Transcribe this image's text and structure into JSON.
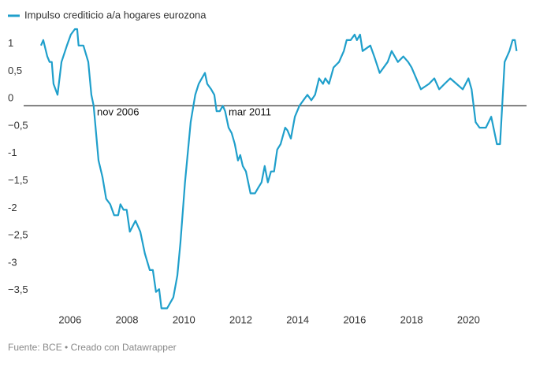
{
  "chart_data": {
    "type": "line",
    "series": [
      {
        "name": "Impulso crediticio a/a hogares eurozona",
        "color": "#1f9fcb",
        "x": [
          2004.98,
          2005.06,
          2005.2,
          2005.28,
          2005.36,
          2005.42,
          2005.56,
          2005.7,
          2005.89,
          2006.03,
          2006.17,
          2006.25,
          2006.3,
          2006.47,
          2006.64,
          2006.75,
          2006.83,
          2007.0,
          2007.14,
          2007.27,
          2007.41,
          2007.55,
          2007.69,
          2007.77,
          2007.88,
          2007.99,
          2008.1,
          2008.3,
          2008.47,
          2008.63,
          2008.8,
          2008.91,
          2009.02,
          2009.13,
          2009.21,
          2009.41,
          2009.63,
          2009.77,
          2009.88,
          2010.04,
          2010.24,
          2010.4,
          2010.52,
          2010.63,
          2010.74,
          2010.82,
          2010.96,
          2011.07,
          2011.15,
          2011.26,
          2011.37,
          2011.45,
          2011.57,
          2011.68,
          2011.79,
          2011.9,
          2011.98,
          2012.07,
          2012.18,
          2012.34,
          2012.5,
          2012.61,
          2012.73,
          2012.84,
          2012.95,
          2013.06,
          2013.17,
          2013.28,
          2013.4,
          2013.56,
          2013.64,
          2013.76,
          2013.9,
          2014.06,
          2014.2,
          2014.34,
          2014.48,
          2014.61,
          2014.75,
          2014.89,
          2014.97,
          2015.1,
          2015.26,
          2015.45,
          2015.62,
          2015.72,
          2015.86,
          2016.0,
          2016.08,
          2016.19,
          2016.28,
          2016.55,
          2016.69,
          2016.88,
          2017.16,
          2017.3,
          2017.52,
          2017.71,
          2017.88,
          2018.0,
          2018.33,
          2018.61,
          2018.8,
          2018.97,
          2019.16,
          2019.36,
          2019.58,
          2019.8,
          2020.0,
          2020.11,
          2020.25,
          2020.39,
          2020.61,
          2020.8,
          2021.0,
          2021.11,
          2021.27,
          2021.44,
          2021.55,
          2021.63,
          2021.69
        ],
        "values": [
          1.1,
          1.2,
          0.9,
          0.8,
          0.8,
          0.4,
          0.2,
          0.8,
          1.1,
          1.3,
          1.4,
          1.4,
          1.1,
          1.1,
          0.8,
          0.2,
          0,
          -1.0,
          -1.3,
          -1.7,
          -1.8,
          -2.0,
          -2.0,
          -1.8,
          -1.9,
          -1.9,
          -2.3,
          -2.1,
          -2.3,
          -2.7,
          -3.0,
          -3.0,
          -3.4,
          -3.35,
          -3.7,
          -3.7,
          -3.5,
          -3.1,
          -2.5,
          -1.4,
          -0.3,
          0.2,
          0.4,
          0.5,
          0.6,
          0.4,
          0.3,
          0.2,
          -0.1,
          -0.1,
          0,
          -0.1,
          -0.4,
          -0.5,
          -0.7,
          -1.0,
          -0.9,
          -1.1,
          -1.2,
          -1.6,
          -1.6,
          -1.5,
          -1.4,
          -1.1,
          -1.4,
          -1.2,
          -1.2,
          -0.8,
          -0.7,
          -0.4,
          -0.45,
          -0.6,
          -0.2,
          0,
          0.1,
          0.2,
          0.1,
          0.2,
          0.5,
          0.4,
          0.5,
          0.4,
          0.7,
          0.8,
          1.0,
          1.2,
          1.2,
          1.3,
          1.2,
          1.3,
          1.0,
          1.1,
          0.9,
          0.6,
          0.8,
          1.0,
          0.8,
          0.9,
          0.8,
          0.7,
          0.3,
          0.4,
          0.5,
          0.3,
          0.4,
          0.5,
          0.4,
          0.3,
          0.5,
          0.3,
          -0.3,
          -0.4,
          -0.4,
          -0.2,
          -0.7,
          -0.7,
          0.8,
          1.0,
          1.2,
          1.2,
          1.0
        ]
      }
    ],
    "xlim": [
      2004.37,
      2022.04
    ],
    "xticks": [
      2006,
      2008,
      2010,
      2012,
      2014,
      2016,
      2018,
      2020
    ],
    "ylim": [
      -3.75,
      1.5
    ],
    "yticks": [
      {
        "value": -3.5,
        "label": "−3,5"
      },
      -3,
      {
        "value": -2.5,
        "label": "−2,5"
      },
      -2,
      {
        "value": -1.5,
        "label": "−1,5"
      },
      -1,
      {
        "value": -0.5,
        "label": "−0,5"
      },
      0,
      {
        "value": 0.5,
        "label": "0,5"
      },
      1
    ],
    "annotations": [
      "nov 2006",
      "mar 2011"
    ],
    "source": "Fuente: BCE • Creado con Datawrapper"
  }
}
